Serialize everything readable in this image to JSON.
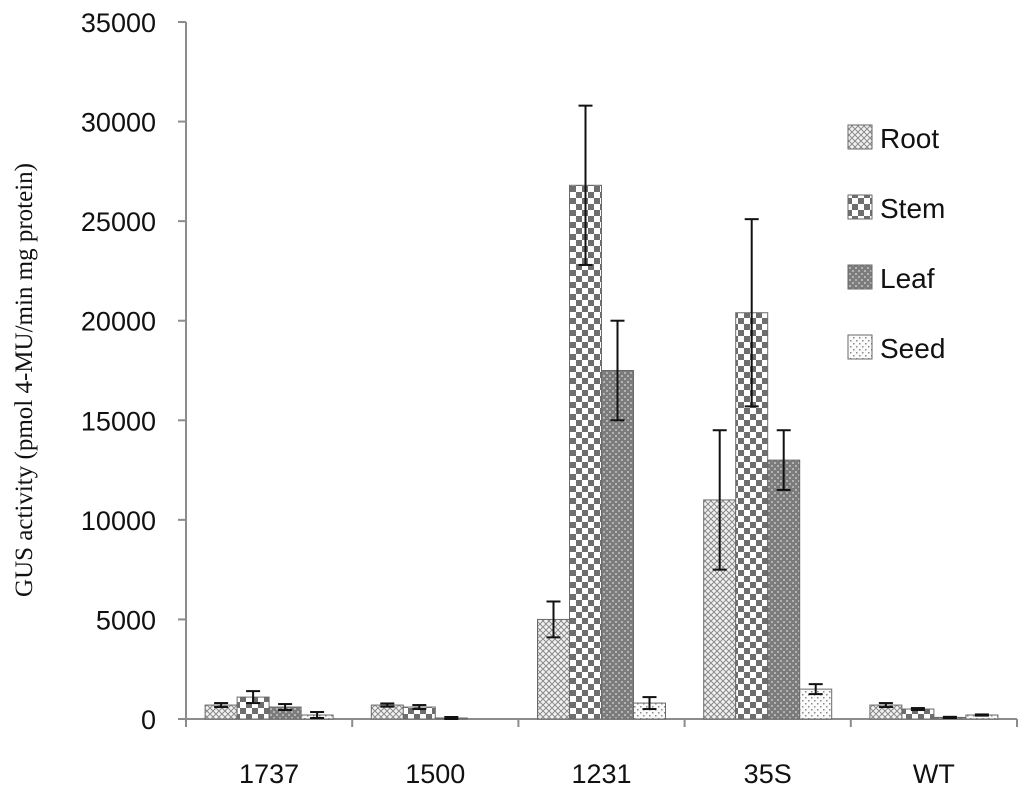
{
  "chart_data": {
    "type": "bar",
    "title": "",
    "xlabel": "",
    "ylabel": "GUS activity (pmol 4-MU/min mg protein)",
    "ylim": [
      0,
      35000
    ],
    "yticks": [
      0,
      5000,
      10000,
      15000,
      20000,
      25000,
      30000,
      35000
    ],
    "categories": [
      "1737",
      "1500",
      "1231",
      "35S",
      "WT"
    ],
    "series": [
      {
        "name": "Root",
        "values": [
          700,
          700,
          5000,
          11000,
          700
        ],
        "errors": [
          100,
          80,
          900,
          3500,
          100
        ]
      },
      {
        "name": "Stem",
        "values": [
          1100,
          600,
          26800,
          20400,
          500
        ],
        "errors": [
          300,
          100,
          4000,
          4700,
          50
        ]
      },
      {
        "name": "Leaf",
        "values": [
          600,
          50,
          17500,
          13000,
          80
        ],
        "errors": [
          150,
          50,
          2500,
          1500,
          30
        ]
      },
      {
        "name": "Seed",
        "values": [
          200,
          0,
          800,
          1500,
          200
        ],
        "errors": [
          150,
          0,
          300,
          250,
          30
        ]
      }
    ],
    "legend_position": "right",
    "grid": false
  },
  "colors": {
    "axis": "#8c8c8c",
    "bar_dark": "#7a7a7a",
    "bar_light": "#e8e8e8",
    "error_bar": "#111111"
  }
}
